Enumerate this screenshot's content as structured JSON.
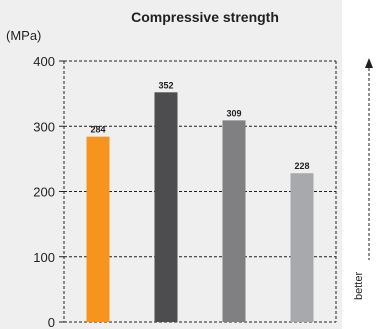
{
  "chart_data": {
    "type": "bar",
    "title": "Compressive strength",
    "ylabel": "(MPa)",
    "xlabel": "",
    "ylim": [
      0,
      400
    ],
    "yticks": [
      0,
      100,
      200,
      300,
      400
    ],
    "grid": true,
    "categories": [
      "",
      "",
      "",
      ""
    ],
    "values": [
      284,
      352,
      309,
      228
    ],
    "colors": [
      "#f7941d",
      "#4d4d4f",
      "#808082",
      "#a7a9ac"
    ]
  },
  "side": {
    "better_label": "better"
  }
}
